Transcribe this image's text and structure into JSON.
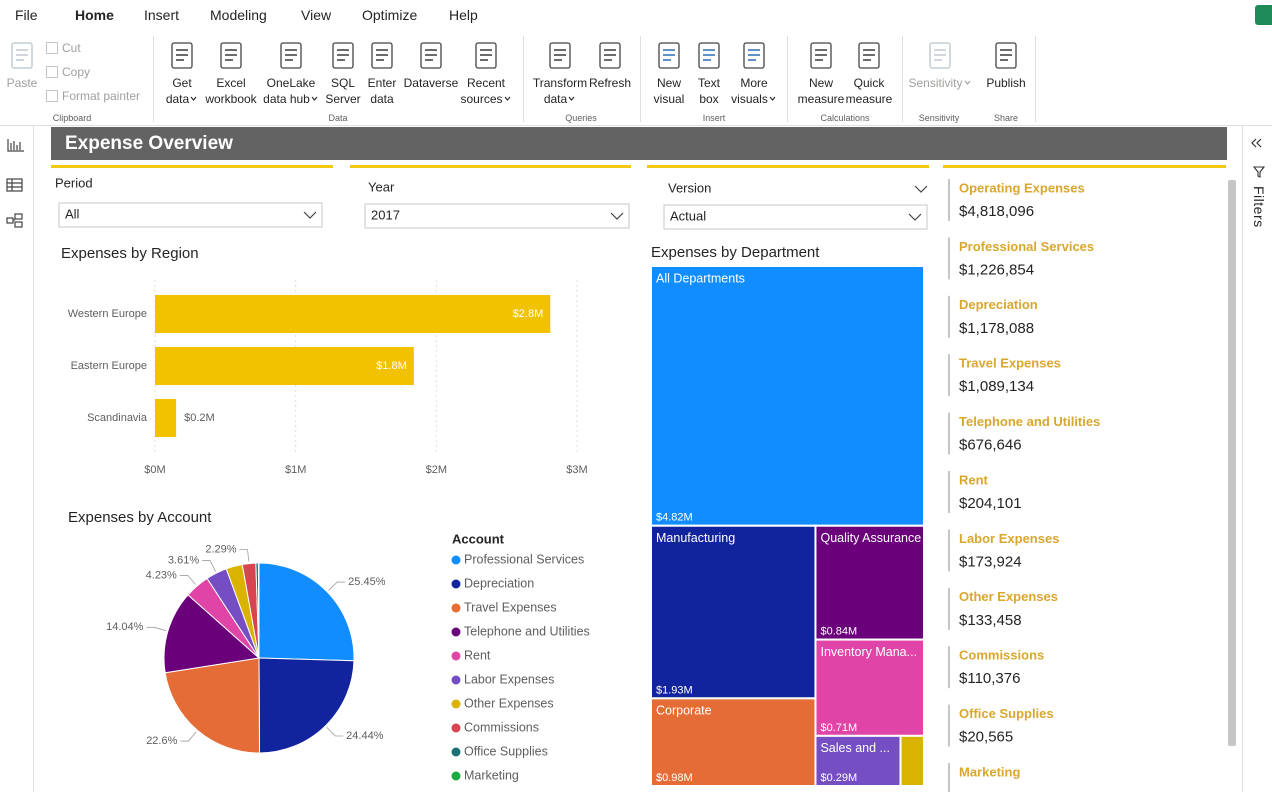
{
  "menu": [
    "File",
    "Home",
    "Insert",
    "Modeling",
    "View",
    "Optimize",
    "Help"
  ],
  "ribbon": {
    "groups": [
      {
        "label": "Clipboard",
        "buttons": [
          {
            "lines": [
              "Paste"
            ]
          }
        ],
        "small_buttons": [
          "Cut",
          "Copy",
          "Format painter"
        ]
      },
      {
        "label": "Data",
        "buttons": [
          {
            "lines": [
              "Get",
              "data"
            ]
          },
          {
            "lines": [
              "Excel",
              "workbook"
            ]
          },
          {
            "lines": [
              "OneLake",
              "data hub"
            ]
          },
          {
            "lines": [
              "SQL",
              "Server"
            ]
          },
          {
            "lines": [
              "Enter",
              "data"
            ]
          },
          {
            "lines": [
              "Dataverse"
            ]
          },
          {
            "lines": [
              "Recent",
              "sources"
            ]
          }
        ]
      },
      {
        "label": "Queries",
        "buttons": [
          {
            "lines": [
              "Transform",
              "data"
            ]
          },
          {
            "lines": [
              "Refresh"
            ]
          }
        ]
      },
      {
        "label": "Insert",
        "buttons": [
          {
            "lines": [
              "New",
              "visual"
            ]
          },
          {
            "lines": [
              "Text",
              "box"
            ]
          },
          {
            "lines": [
              "More",
              "visuals"
            ]
          }
        ]
      },
      {
        "label": "Calculations",
        "buttons": [
          {
            "lines": [
              "New",
              "measure"
            ]
          },
          {
            "lines": [
              "Quick",
              "measure"
            ]
          }
        ]
      },
      {
        "label": "Sensitivity",
        "buttons": [
          {
            "lines": [
              "Sensitivity"
            ]
          }
        ]
      },
      {
        "label": "Share",
        "buttons": [
          {
            "lines": [
              "Publish"
            ]
          }
        ]
      }
    ]
  },
  "report_title": "Expense Overview",
  "slicers": [
    {
      "label": "Period",
      "value": "All"
    },
    {
      "label": "Year",
      "value": "2017"
    },
    {
      "label": "Version",
      "value": "Actual"
    }
  ],
  "chart_data": [
    {
      "type": "bar",
      "orientation": "horizontal",
      "title": "Expenses by Region",
      "categories": [
        "Western Europe",
        "Eastern Europe",
        "Scandinavia"
      ],
      "values": [
        2.81,
        1.84,
        0.15
      ],
      "value_labels": [
        "$2.8M",
        "$1.8M",
        "$0.2M"
      ],
      "color": "#F2C200",
      "xlim": [
        0,
        3
      ],
      "xticks": [
        {
          "value": 0,
          "label": "$0M"
        },
        {
          "value": 1,
          "label": "$1M"
        },
        {
          "value": 2,
          "label": "$2M"
        },
        {
          "value": 3,
          "label": "$3M"
        }
      ],
      "grid": true
    },
    {
      "type": "pie",
      "title": "Expenses by Account",
      "legend_title": "Account",
      "categories": [
        "Professional Services",
        "Depreciation",
        "Travel Expenses",
        "Telephone and Utilities",
        "Rent",
        "Labor Expenses",
        "Other Expenses",
        "Commissions",
        "Office Supplies",
        "Marketing"
      ],
      "values": [
        25.45,
        24.44,
        22.6,
        14.04,
        4.23,
        3.61,
        2.77,
        2.29,
        0.43,
        0.1
      ],
      "value_labels": [
        "25.45%",
        "24.44%",
        "22.6%",
        "14.04%",
        "4.23%",
        "3.61%",
        null,
        "2.29%",
        null,
        null
      ],
      "colors": [
        "#118DFF",
        "#12239E",
        "#E66C37",
        "#6B007B",
        "#E044A7",
        "#744EC2",
        "#D9B300",
        "#D64550",
        "#197278",
        "#1AAB40"
      ]
    },
    {
      "type": "treemap",
      "title": "Expenses by Department",
      "categories": [
        "All Departments",
        "Manufacturing",
        "Corporate",
        "Quality Assurance",
        "Inventory Mana...",
        "Sales and ...",
        null
      ],
      "values": [
        4.82,
        1.93,
        0.98,
        0.84,
        0.71,
        0.29,
        0.08
      ],
      "value_labels": [
        "$4.82M",
        "$1.93M",
        "$0.98M",
        "$0.84M",
        "$0.71M",
        "$0.29M",
        null
      ],
      "colors": [
        "#118DFF",
        "#12239E",
        "#E66C37",
        "#6B007B",
        "#E044A7",
        "#744EC2",
        "#D9B300"
      ]
    }
  ],
  "cards": [
    {
      "label": "Operating Expenses",
      "value": "$4,818,096"
    },
    {
      "label": "Professional Services",
      "value": "$1,226,854"
    },
    {
      "label": "Depreciation",
      "value": "$1,178,088"
    },
    {
      "label": "Travel Expenses",
      "value": "$1,089,134"
    },
    {
      "label": "Telephone and Utilities",
      "value": "$676,646"
    },
    {
      "label": "Rent",
      "value": "$204,101"
    },
    {
      "label": "Labor Expenses",
      "value": "$173,924"
    },
    {
      "label": "Other Expenses",
      "value": "$133,458"
    },
    {
      "label": "Commissions",
      "value": "$110,376"
    },
    {
      "label": "Office Supplies",
      "value": "$20,565"
    },
    {
      "label": "Marketing"
    }
  ],
  "filters_pane": {
    "label": "Filters"
  }
}
